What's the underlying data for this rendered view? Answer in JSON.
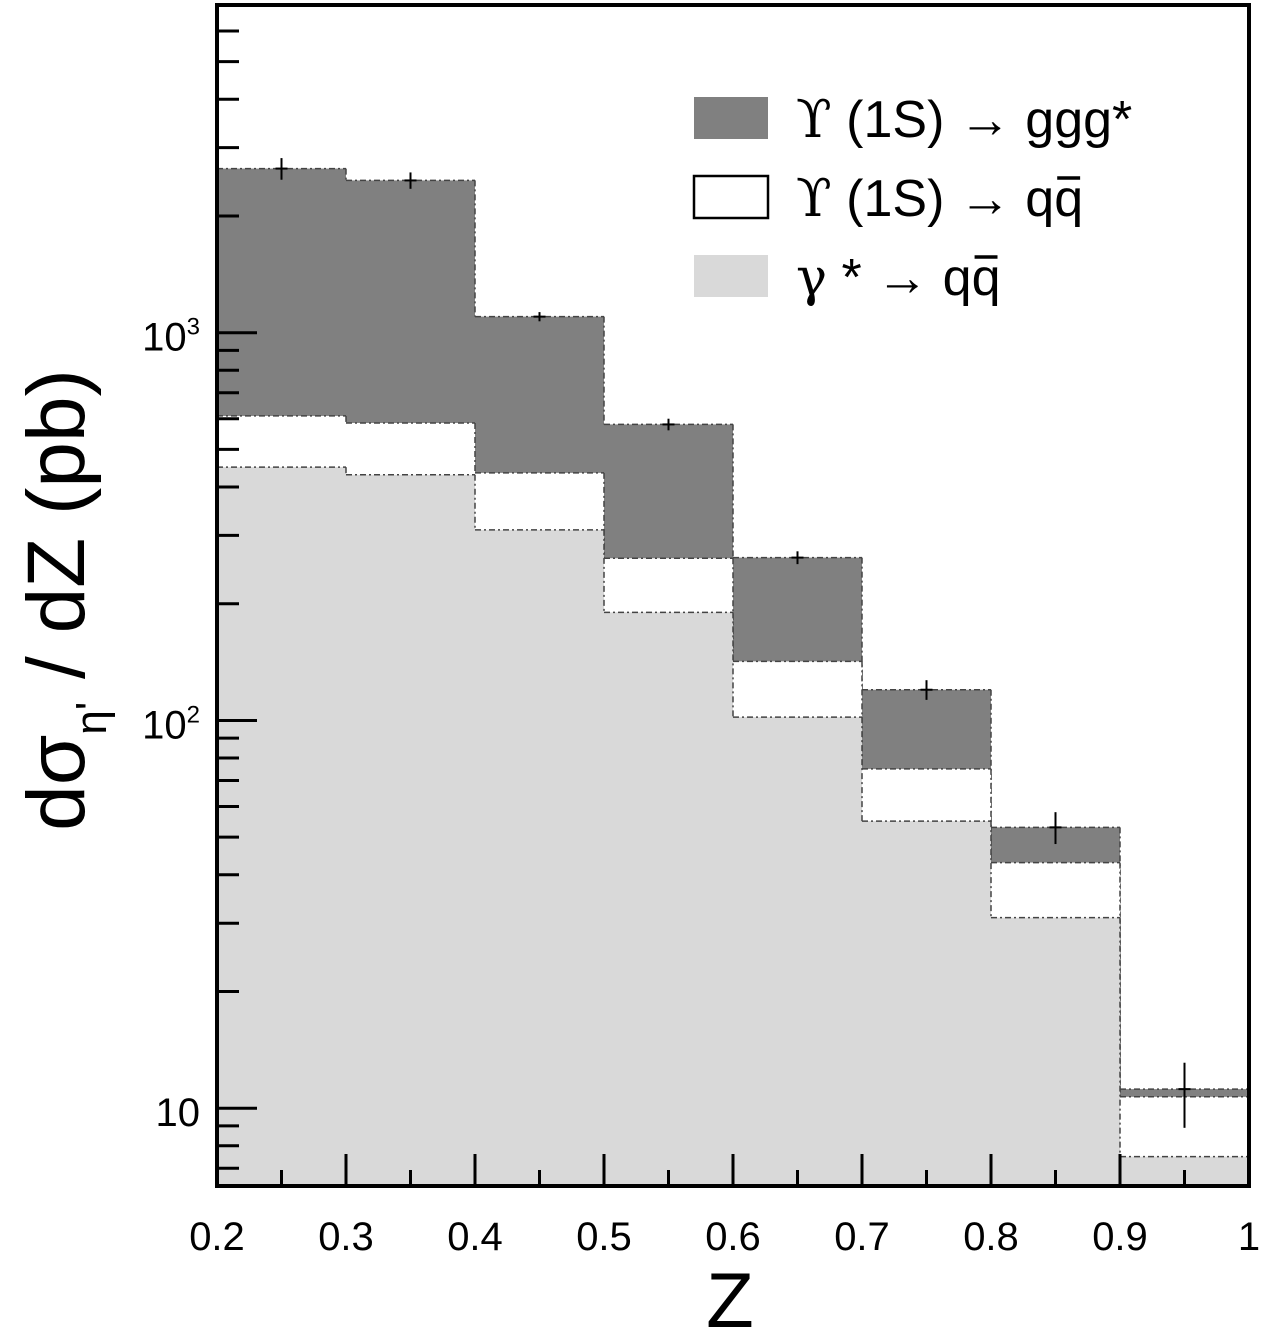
{
  "chart_data": {
    "type": "bar",
    "style": "stacked-histogram",
    "x_scale": "linear",
    "y_scale": "log",
    "xlim": [
      0.2,
      1.0
    ],
    "ylim": [
      6.3,
      7000
    ],
    "grid": false,
    "legend_position": "top-right",
    "xlabel": "Z",
    "ylabel": "dση' / dZ (pb)",
    "ylabel_parts": {
      "main": "dσ",
      "sub": "η'",
      "rest": " / dZ (pb)"
    },
    "x_ticks": [
      0.2,
      0.3,
      0.4,
      0.5,
      0.6,
      0.7,
      0.8,
      0.9,
      1.0
    ],
    "x_tick_labels": [
      "0.2",
      "0.3",
      "0.4",
      "0.5",
      "0.6",
      "0.7",
      "0.8",
      "0.9",
      "1"
    ],
    "y_ticks": [
      10,
      100,
      1000
    ],
    "y_tick_labels": [
      {
        "base": "10",
        "exp": ""
      },
      {
        "base": "10",
        "exp": "2"
      },
      {
        "base": "10",
        "exp": "3"
      }
    ],
    "bin_edges": [
      0.2,
      0.3,
      0.4,
      0.5,
      0.6,
      0.7,
      0.8,
      0.9,
      1.0
    ],
    "series": [
      {
        "name": "γ * → qq̄",
        "legend_parts": {
          "a": "γ",
          "b": " * → q",
          "c": "q"
        },
        "color": "#d9d9d9",
        "values": [
          450,
          430,
          310,
          190,
          102,
          55,
          31,
          7.5
        ]
      },
      {
        "name": "ϒ (1S) → qq̄",
        "legend_parts": {
          "a": "ϒ",
          "b": " (1S) → q",
          "c": "q"
        },
        "color": "#ffffff",
        "values": [
          610,
          585,
          435,
          262,
          142,
          75,
          43,
          10.7
        ]
      },
      {
        "name": "ϒ (1S) → ggg*",
        "legend_parts": {
          "a": "ϒ",
          "b": " (1S) → ggg*",
          "c": ""
        },
        "color": "#808080",
        "values": [
          2650,
          2470,
          1100,
          580,
          263,
          120,
          53,
          11.2
        ]
      }
    ],
    "error_bars": [
      {
        "x": 0.25,
        "y": 2650,
        "err_low": 170,
        "err_high": 170
      },
      {
        "x": 0.35,
        "y": 2470,
        "err_low": 120,
        "err_high": 120
      },
      {
        "x": 0.45,
        "y": 1100,
        "err_low": 30,
        "err_high": 30
      },
      {
        "x": 0.55,
        "y": 580,
        "err_low": 20,
        "err_high": 20
      },
      {
        "x": 0.65,
        "y": 263,
        "err_low": 10,
        "err_high": 10
      },
      {
        "x": 0.75,
        "y": 120,
        "err_low": 7,
        "err_high": 7
      },
      {
        "x": 0.85,
        "y": 53,
        "err_low": 5,
        "err_high": 5
      },
      {
        "x": 0.95,
        "y": 11.2,
        "err_low": 2.3,
        "err_high": 1.9
      }
    ]
  }
}
